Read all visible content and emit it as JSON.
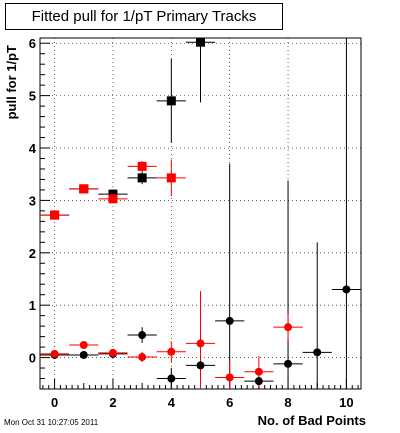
{
  "timestamp": "Mon Oct 31 10:27:05 2011",
  "chart_data": {
    "type": "scatter",
    "title": "Fitted pull for 1/pT Primary Tracks",
    "xlabel": "No. of Bad Points",
    "ylabel": "pull for 1/pT",
    "xlim": [
      -0.5,
      10.5
    ],
    "ylim": [
      -0.6,
      6.1
    ],
    "x_ticks": [
      0,
      2,
      4,
      6,
      8,
      10
    ],
    "y_ticks": [
      0,
      1,
      2,
      3,
      4,
      5,
      6
    ],
    "grid": true,
    "series": [
      {
        "marker": "square",
        "color": "#000000",
        "points": [
          {
            "x": 0,
            "y": 2.72,
            "err": 0.05
          },
          {
            "x": 1,
            "y": 3.22,
            "err": 0.05
          },
          {
            "x": 2,
            "y": 3.12,
            "err": 0.06
          },
          {
            "x": 3,
            "y": 3.43,
            "err": 0.12
          },
          {
            "x": 4,
            "y": 4.9,
            "err": 0.8
          },
          {
            "x": 5,
            "y": 6.02,
            "err": 1.15
          }
        ]
      },
      {
        "marker": "square",
        "color": "#ff0000",
        "points": [
          {
            "x": 0,
            "y": 2.72,
            "err": 0.04
          },
          {
            "x": 1,
            "y": 3.22,
            "err": 0.04
          },
          {
            "x": 2,
            "y": 3.03,
            "err": 0.05
          },
          {
            "x": 3,
            "y": 3.65,
            "err": 0.1
          },
          {
            "x": 4,
            "y": 3.43,
            "err": 0.35
          }
        ]
      },
      {
        "marker": "circle",
        "color": "#000000",
        "points": [
          {
            "x": 0,
            "y": 0.05,
            "err": 0.03
          },
          {
            "x": 1,
            "y": 0.05,
            "err": 0.03
          },
          {
            "x": 2,
            "y": 0.07,
            "err": 0.04
          },
          {
            "x": 3,
            "y": 0.43,
            "err": 0.15
          },
          {
            "x": 4,
            "y": -0.4,
            "err": 0.2
          },
          {
            "x": 5,
            "y": -0.15,
            "err": 0.45
          },
          {
            "x": 6,
            "y": 0.7,
            "err": 3.0
          },
          {
            "x": 7,
            "y": -0.45,
            "err": 0.25
          },
          {
            "x": 8,
            "y": -0.12,
            "err": 3.5
          },
          {
            "x": 9,
            "y": 0.1,
            "err": 2.1
          },
          {
            "x": 10,
            "y": 1.3,
            "err": 5.0
          }
        ]
      },
      {
        "marker": "circle",
        "color": "#ff0000",
        "points": [
          {
            "x": 0,
            "y": 0.07,
            "err": 0.03
          },
          {
            "x": 1,
            "y": 0.24,
            "err": 0.03
          },
          {
            "x": 2,
            "y": 0.09,
            "err": 0.04
          },
          {
            "x": 3,
            "y": 0.01,
            "err": 0.1
          },
          {
            "x": 4,
            "y": 0.11,
            "err": 0.2
          },
          {
            "x": 5,
            "y": 0.27,
            "err": 1.0
          },
          {
            "x": 6,
            "y": -0.38,
            "err": 0.3
          },
          {
            "x": 7,
            "y": -0.27,
            "err": 0.3
          },
          {
            "x": 8,
            "y": 0.58,
            "err": 0.25
          }
        ]
      }
    ]
  }
}
